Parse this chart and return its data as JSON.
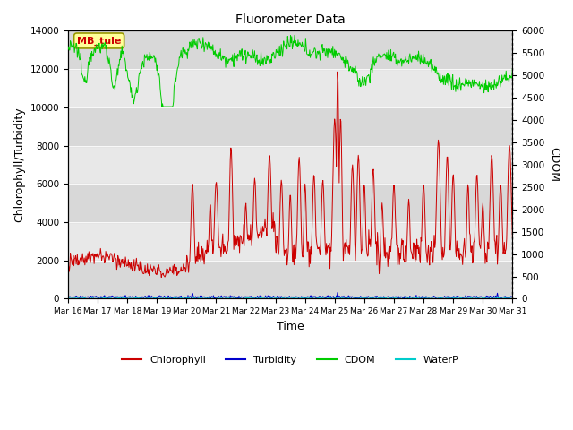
{
  "title": "Fluorometer Data",
  "xlabel": "Time",
  "ylabel_left": "Chlorophyll/Turbidity",
  "ylabel_right": "CDOM",
  "station_label": "MB_tule",
  "colors": {
    "chlorophyll": "#cc0000",
    "turbidity": "#0000cc",
    "cdom": "#00cc00",
    "waterp": "#00cccc"
  },
  "legend_entries": [
    "Chlorophyll",
    "Turbidity",
    "CDOM",
    "WaterP"
  ],
  "station_box_facecolor": "#ffff99",
  "station_box_edgecolor": "#999900",
  "station_label_color": "#cc0000",
  "ylim_left": [
    0,
    14000
  ],
  "ylim_right": [
    0,
    6000
  ],
  "yticks_left": [
    0,
    2000,
    4000,
    6000,
    8000,
    10000,
    12000,
    14000
  ],
  "yticks_right": [
    0,
    500,
    1000,
    1500,
    2000,
    2500,
    3000,
    3500,
    4000,
    4500,
    5000,
    5500,
    6000
  ],
  "xtick_labels": [
    "Mar 16",
    "Mar 17",
    "Mar 18",
    "Mar 19",
    "Mar 20",
    "Mar 21",
    "Mar 22",
    "Mar 23",
    "Mar 24",
    "Mar 25",
    "Mar 26",
    "Mar 27",
    "Mar 28",
    "Mar 29",
    "Mar 30",
    "Mar 31"
  ],
  "band_dark": "#d8d8d8",
  "band_light": "#e8e8e8",
  "fig_facecolor": "#ffffff"
}
